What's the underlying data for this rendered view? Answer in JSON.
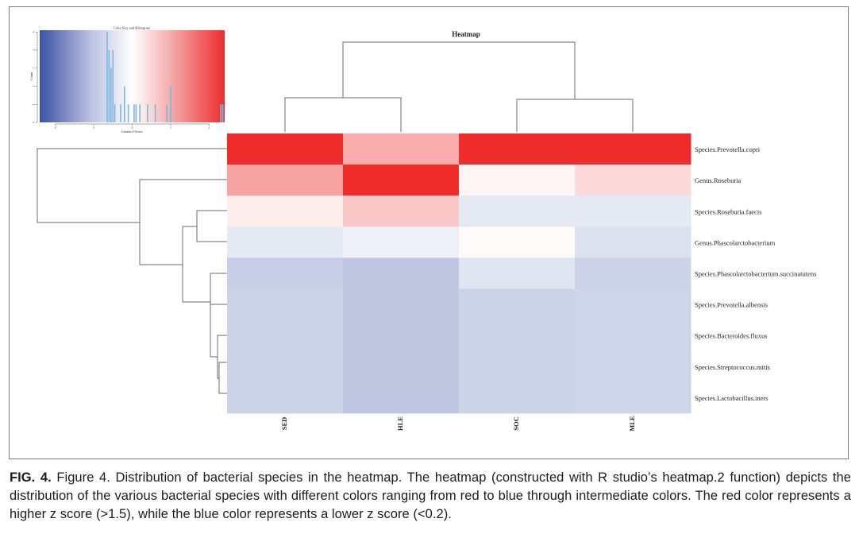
{
  "figure": {
    "caption_label": "FIG. 4.",
    "caption_text": "Figure 4. Distribution of bacterial species in the heatmap. The heatmap (constructed with R studio’s heatmap.2 function) depicts the distribution of the various bacterial species with different colors ranging from red to blue through intermediate colors. The red color represents a higher z score (>1.5), while the blue color represents a lower z score (<0.2)."
  },
  "chart_data": {
    "type": "heatmap",
    "title": "Heatmap",
    "columns": [
      "SED",
      "HLE",
      "SOC",
      "MLE"
    ],
    "rows": [
      "Species.Prevotella.copri",
      "Genus.Roseburia",
      "Species.Roseburia.faecis",
      "Genus.Phascolarctobacterium",
      "Species.Phascolarctobacterium.succinatutens",
      "Species.Prevotella.albensis",
      "Species.Bacteroides.fluxus",
      "Species.Streptococcus.mitis",
      "Species.Lactobacillus.iners"
    ],
    "z_scores": [
      [
        2.3,
        0.9,
        2.3,
        2.3
      ],
      [
        1.0,
        2.3,
        0.1,
        0.4
      ],
      [
        0.2,
        0.6,
        -0.3,
        -0.3
      ],
      [
        -0.3,
        -0.2,
        0.05,
        -0.4
      ],
      [
        -0.65,
        -0.75,
        -0.35,
        -0.6
      ],
      [
        -0.6,
        -0.75,
        -0.6,
        -0.55
      ],
      [
        -0.6,
        -0.75,
        -0.6,
        -0.55
      ],
      [
        -0.6,
        -0.75,
        -0.6,
        -0.55
      ],
      [
        -0.6,
        -0.75,
        -0.6,
        -0.55
      ]
    ],
    "color_key": {
      "title": "Color Key and Histogram",
      "xlabel": "Column Z-Score",
      "ylabel": "Count",
      "xticks": [
        -2,
        -1,
        0,
        1,
        2
      ],
      "yticks": [
        0,
        1,
        2,
        3,
        4,
        5
      ],
      "xlim": [
        -2.4,
        2.4
      ],
      "ylim": [
        0,
        5.1
      ],
      "low_color": "#3a53a4",
      "mid_color": "#ffffff",
      "high_color": "#ee2c2c",
      "histogram_color": "#79b8e4",
      "histogram": [
        {
          "z": -0.65,
          "count": 5
        },
        {
          "z": -0.6,
          "count": 4
        },
        {
          "z": -0.55,
          "count": 3
        },
        {
          "z": -0.5,
          "count": 4
        },
        {
          "z": -0.45,
          "count": 1
        },
        {
          "z": -0.3,
          "count": 1
        },
        {
          "z": -0.2,
          "count": 2
        },
        {
          "z": -0.1,
          "count": 1
        },
        {
          "z": 0.05,
          "count": 1
        },
        {
          "z": 0.1,
          "count": 1
        },
        {
          "z": 0.2,
          "count": 1
        },
        {
          "z": 0.4,
          "count": 1
        },
        {
          "z": 0.6,
          "count": 1
        },
        {
          "z": 0.9,
          "count": 1
        },
        {
          "z": 1.0,
          "count": 2
        },
        {
          "z": 2.3,
          "count": 1
        },
        {
          "z": 2.35,
          "count": 1
        }
      ]
    },
    "column_dendrogram": "((SED,HLE),(SOC,MLE))",
    "row_dendrogram": "(Species.Prevotella.copri,(Genus.Roseburia,((Species.Roseburia.faecis,Genus.Phascolarctobacterium),(Species.Phascolarctobacterium.succinatutens,(Species.Prevotella.albensis,(Species.Bacteroides.fluxus,(Species.Streptococcus.mitis,Species.Lactobacillus.iners)))))))"
  }
}
